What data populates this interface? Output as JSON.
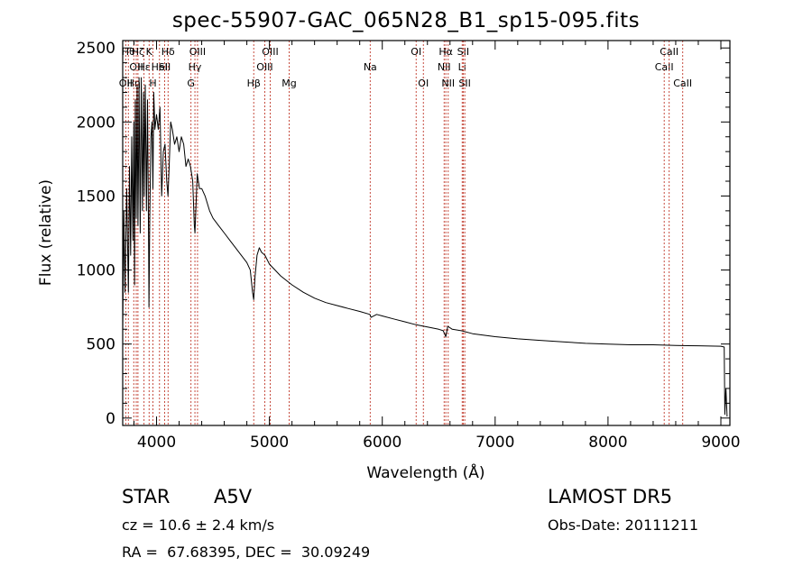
{
  "title": "spec-55907-GAC_065N28_B1_sp15-095.fits",
  "footer": {
    "object_type": "STAR",
    "subclass": "A5V",
    "survey": "LAMOST DR5",
    "cz": "cz = 10.6 ± 2.4 km/s",
    "obs_date": "Obs-Date: 20111211",
    "radec": "RA =  67.68395, DEC =  30.09249"
  },
  "chart_data": {
    "type": "line",
    "xlabel": "Wavelength (Å)",
    "ylabel": "Flux (relative)",
    "xlim": [
      3700,
      9080
    ],
    "ylim": [
      -50,
      2550
    ],
    "x_ticks": [
      4000,
      5000,
      6000,
      7000,
      8000,
      9000
    ],
    "y_ticks": [
      0,
      500,
      1000,
      1500,
      2000,
      2500
    ],
    "series_color": "#000000",
    "line_marker_color": "#c0392b",
    "series": [
      {
        "x": [
          3700,
          3710,
          3720,
          3735,
          3750,
          3760,
          3770,
          3780,
          3790,
          3798,
          3805,
          3812,
          3820,
          3828,
          3835,
          3840,
          3845,
          3855,
          3865,
          3875,
          3885,
          3890,
          3900,
          3910,
          3920,
          3930,
          3933,
          3940,
          3950,
          3960,
          3968,
          3975,
          3985,
          4000,
          4015,
          4030,
          4045,
          4060,
          4075,
          4090,
          4101,
          4112,
          4125,
          4140,
          4160,
          4180,
          4200,
          4220,
          4240,
          4260,
          4280,
          4300,
          4320,
          4335,
          4340,
          4345,
          4360,
          4380,
          4400,
          4430,
          4470,
          4500,
          4550,
          4600,
          4650,
          4700,
          4750,
          4800,
          4830,
          4850,
          4861,
          4872,
          4890,
          4910,
          4930,
          4960,
          5000,
          5050,
          5100,
          5150,
          5200,
          5300,
          5400,
          5500,
          5600,
          5700,
          5800,
          5890,
          5900,
          5950,
          6000,
          6100,
          6200,
          6300,
          6400,
          6500,
          6540,
          6563,
          6580,
          6620,
          6700,
          6800,
          7000,
          7200,
          7400,
          7600,
          7800,
          8000,
          8200,
          8400,
          8600,
          8800,
          9000,
          9030,
          9035,
          9045,
          9055
        ],
        "y": [
          600,
          1400,
          850,
          1550,
          850,
          1700,
          1100,
          1900,
          1200,
          2000,
          900,
          2150,
          1350,
          2250,
          1300,
          1700,
          2300,
          1250,
          2300,
          1400,
          2200,
          1500,
          2250,
          1400,
          2150,
          1100,
          750,
          1350,
          1900,
          2000,
          1550,
          2200,
          1950,
          2050,
          1950,
          2100,
          1500,
          1800,
          1850,
          1600,
          1500,
          1700,
          2000,
          1950,
          1850,
          1900,
          1800,
          1900,
          1850,
          1700,
          1750,
          1700,
          1600,
          1300,
          1250,
          1350,
          1650,
          1550,
          1550,
          1500,
          1400,
          1350,
          1300,
          1250,
          1200,
          1150,
          1100,
          1050,
          1000,
          850,
          800,
          950,
          1100,
          1150,
          1120,
          1100,
          1040,
          1000,
          960,
          930,
          900,
          850,
          810,
          780,
          760,
          740,
          720,
          700,
          680,
          700,
          690,
          670,
          650,
          630,
          615,
          600,
          590,
          550,
          620,
          600,
          590,
          570,
          550,
          535,
          525,
          515,
          505,
          500,
          495,
          495,
          490,
          488,
          485,
          480,
          25,
          200,
          10
        ]
      }
    ],
    "line_markers": [
      {
        "x": 3727,
        "label": "OII",
        "row": 2
      },
      {
        "x": 3750,
        "label": "Hθ",
        "row": 0
      },
      {
        "x": 3798,
        "label": "Hη",
        "row": 2
      },
      {
        "x": 3820,
        "label": "OII",
        "row": 1
      },
      {
        "x": 3835,
        "label": "Hζ",
        "row": 0
      },
      {
        "x": 3889,
        "label": "Hε",
        "row": 1
      },
      {
        "x": 3934,
        "label": "K",
        "row": 0
      },
      {
        "x": 3968,
        "label": "H",
        "row": 2
      },
      {
        "x": 4026,
        "label": "HeI",
        "row": 1
      },
      {
        "x": 4072,
        "label": "SII",
        "row": 1
      },
      {
        "x": 4102,
        "label": "Hδ",
        "row": 0
      },
      {
        "x": 4305,
        "label": "G",
        "row": 2
      },
      {
        "x": 4340,
        "label": "Hγ",
        "row": 1
      },
      {
        "x": 4363,
        "label": "OIII",
        "row": 0
      },
      {
        "x": 4861,
        "label": "Hβ",
        "row": 2
      },
      {
        "x": 4959,
        "label": "OIII",
        "row": 1
      },
      {
        "x": 5007,
        "label": "OIII",
        "row": 0
      },
      {
        "x": 5175,
        "label": "Mg",
        "row": 2
      },
      {
        "x": 5893,
        "label": "Na",
        "row": 1
      },
      {
        "x": 6300,
        "label": "OI",
        "row": 0
      },
      {
        "x": 6364,
        "label": "OI",
        "row": 2
      },
      {
        "x": 6548,
        "label": "NII",
        "row": 1
      },
      {
        "x": 6563,
        "label": "Hα",
        "row": 0
      },
      {
        "x": 6584,
        "label": "NII",
        "row": 2
      },
      {
        "x": 6708,
        "label": "Li",
        "row": 1
      },
      {
        "x": 6717,
        "label": "SII",
        "row": 0
      },
      {
        "x": 6731,
        "label": "SII",
        "row": 2
      },
      {
        "x": 8498,
        "label": "CaII",
        "row": 1
      },
      {
        "x": 8542,
        "label": "CaII",
        "row": 0
      },
      {
        "x": 8662,
        "label": "CaII",
        "row": 2
      }
    ]
  }
}
